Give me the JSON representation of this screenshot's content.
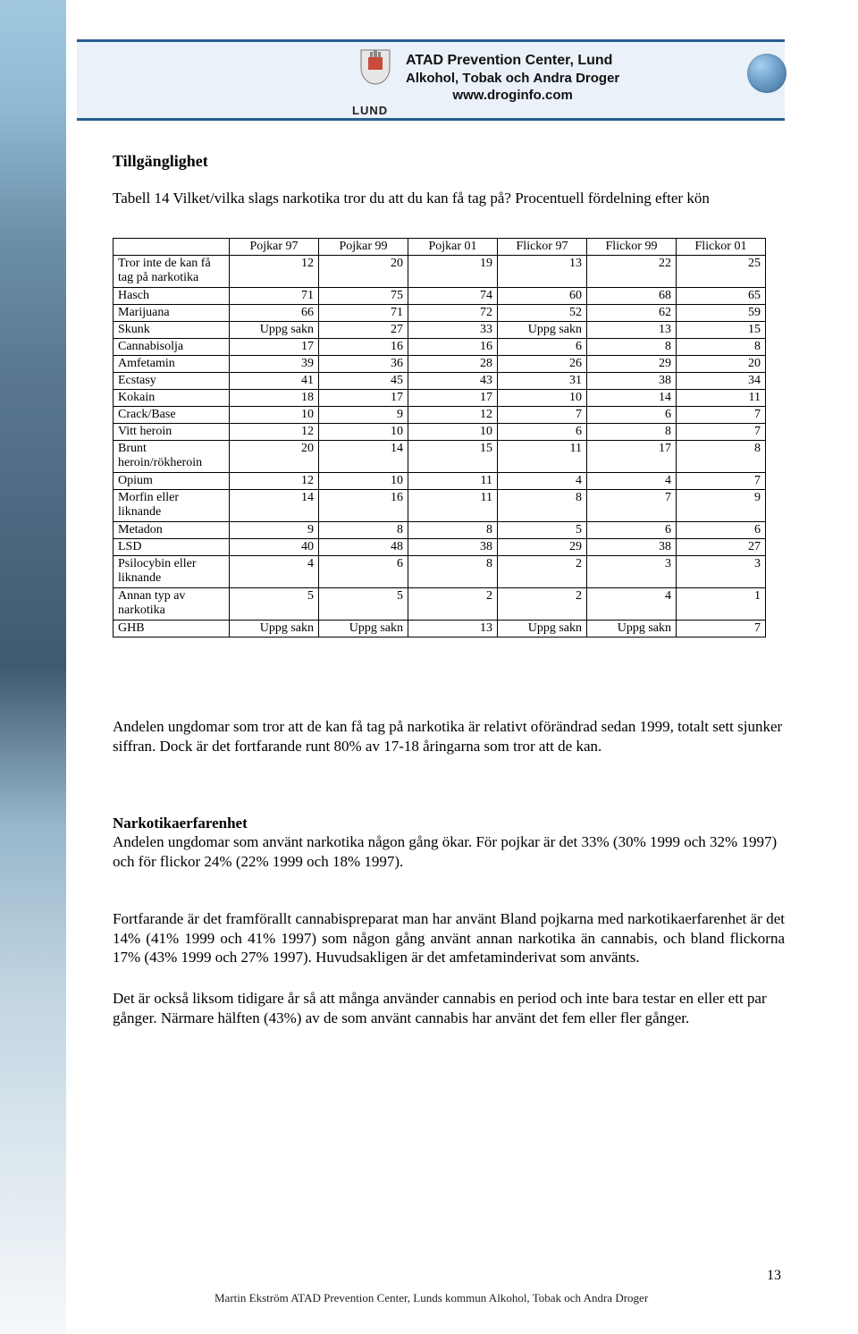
{
  "header": {
    "org_line1": "ATAD Prevention Center, Lund",
    "org_line2_parts": [
      "A",
      "lkohol, ",
      "T",
      "obak och ",
      "A",
      "ndra ",
      "D",
      "roger"
    ],
    "org_line3": "www.droginfo.com",
    "lund_label": "LUND"
  },
  "section": {
    "title": "Tillgänglighet",
    "table_caption": "Tabell 14 Vilket/vilka slags narkotika tror du att du kan få tag på? Procentuell fördelning efter kön"
  },
  "table": {
    "columns": [
      "Pojkar 97",
      "Pojkar 99",
      "Pojkar 01",
      "Flickor 97",
      "Flickor 99",
      "Flickor 01"
    ],
    "rows": [
      {
        "label": "Tror inte de kan få tag på narkotika",
        "tall": true,
        "cells": [
          "12",
          "20",
          "19",
          "13",
          "22",
          "25"
        ]
      },
      {
        "label": "Hasch",
        "cells": [
          "71",
          "75",
          "74",
          "60",
          "68",
          "65"
        ]
      },
      {
        "label": "Marijuana",
        "cells": [
          "66",
          "71",
          "72",
          "52",
          "62",
          "59"
        ]
      },
      {
        "label": "Skunk",
        "cells": [
          "Uppg sakn",
          "27",
          "33",
          "Uppg sakn",
          "13",
          "15"
        ]
      },
      {
        "label": "Cannabisolja",
        "cells": [
          "17",
          "16",
          "16",
          "6",
          "8",
          "8"
        ]
      },
      {
        "label": "Amfetamin",
        "cells": [
          "39",
          "36",
          "28",
          "26",
          "29",
          "20"
        ]
      },
      {
        "label": "Ecstasy",
        "cells": [
          "41",
          "45",
          "43",
          "31",
          "38",
          "34"
        ]
      },
      {
        "label": "Kokain",
        "cells": [
          "18",
          "17",
          "17",
          "10",
          "14",
          "11"
        ]
      },
      {
        "label": "Crack/Base",
        "cells": [
          "10",
          "9",
          "12",
          "7",
          "6",
          "7"
        ]
      },
      {
        "label": "Vitt heroin",
        "cells": [
          "12",
          "10",
          "10",
          "6",
          "8",
          "7"
        ]
      },
      {
        "label": "Brunt heroin/rökheroin",
        "tall": true,
        "cells": [
          "20",
          "14",
          "15",
          "11",
          "17",
          "8"
        ]
      },
      {
        "label": "Opium",
        "cells": [
          "12",
          "10",
          "11",
          "4",
          "4",
          "7"
        ]
      },
      {
        "label": "Morfin eller liknande",
        "tall": true,
        "cells": [
          "14",
          "16",
          "11",
          "8",
          "7",
          "9"
        ]
      },
      {
        "label": "Metadon",
        "cells": [
          "9",
          "8",
          "8",
          "5",
          "6",
          "6"
        ]
      },
      {
        "label": "LSD",
        "cells": [
          "40",
          "48",
          "38",
          "29",
          "38",
          "27"
        ]
      },
      {
        "label": "Psilocybin eller liknande",
        "tall": true,
        "cells": [
          "4",
          "6",
          "8",
          "2",
          "3",
          "3"
        ]
      },
      {
        "label": "Annan typ av narkotika",
        "tall": true,
        "cells": [
          "5",
          "5",
          "2",
          "2",
          "4",
          "1"
        ]
      },
      {
        "label": "GHB",
        "cells": [
          "Uppg sakn",
          "Uppg sakn",
          "13",
          "Uppg sakn",
          "Uppg sakn",
          "7"
        ]
      }
    ],
    "col_width_label": 130,
    "col_width_num": 100,
    "border_color": "#000000",
    "font_size": 14
  },
  "body": {
    "p1": "Andelen ungdomar som tror att de kan få tag på narkotika är relativt oförändrad sedan 1999, totalt sett sjunker siffran. Dock är det fortfarande runt 80% av 17-18 åringarna som tror att de kan.",
    "h2": "Narkotikaerfarenhet",
    "p2": "Andelen ungdomar som använt narkotika någon gång ökar. För pojkar är det 33% (30% 1999 och 32% 1997) och för flickor 24% (22% 1999 och 18% 1997).",
    "p3": "Fortfarande är det framförallt cannabispreparat man har använt Bland pojkarna med narkotikaerfarenhet är det 14% (41% 1999 och 41% 1997) som någon gång använt annan narkotika än cannabis, och bland flickorna 17% (43% 1999 och 27% 1997). Huvudsakligen är det amfetaminderivat som använts.",
    "p4": "Det är också liksom tidigare år så att många använder cannabis en period och inte bara testar en eller ett par gånger. Närmare hälften (43%) av de som använt cannabis har använt det fem eller fler gånger."
  },
  "footer": {
    "page_number": "13",
    "line_parts": [
      "Martin Ekström ",
      "ATAD Prevention Center, Lunds kommun A",
      "lkohol, ",
      "T",
      "obak och ",
      "A",
      "ndra ",
      "D",
      "roger"
    ]
  },
  "colors": {
    "header_rule": "#2a5d8f",
    "header_band": "#eaf1f8"
  }
}
